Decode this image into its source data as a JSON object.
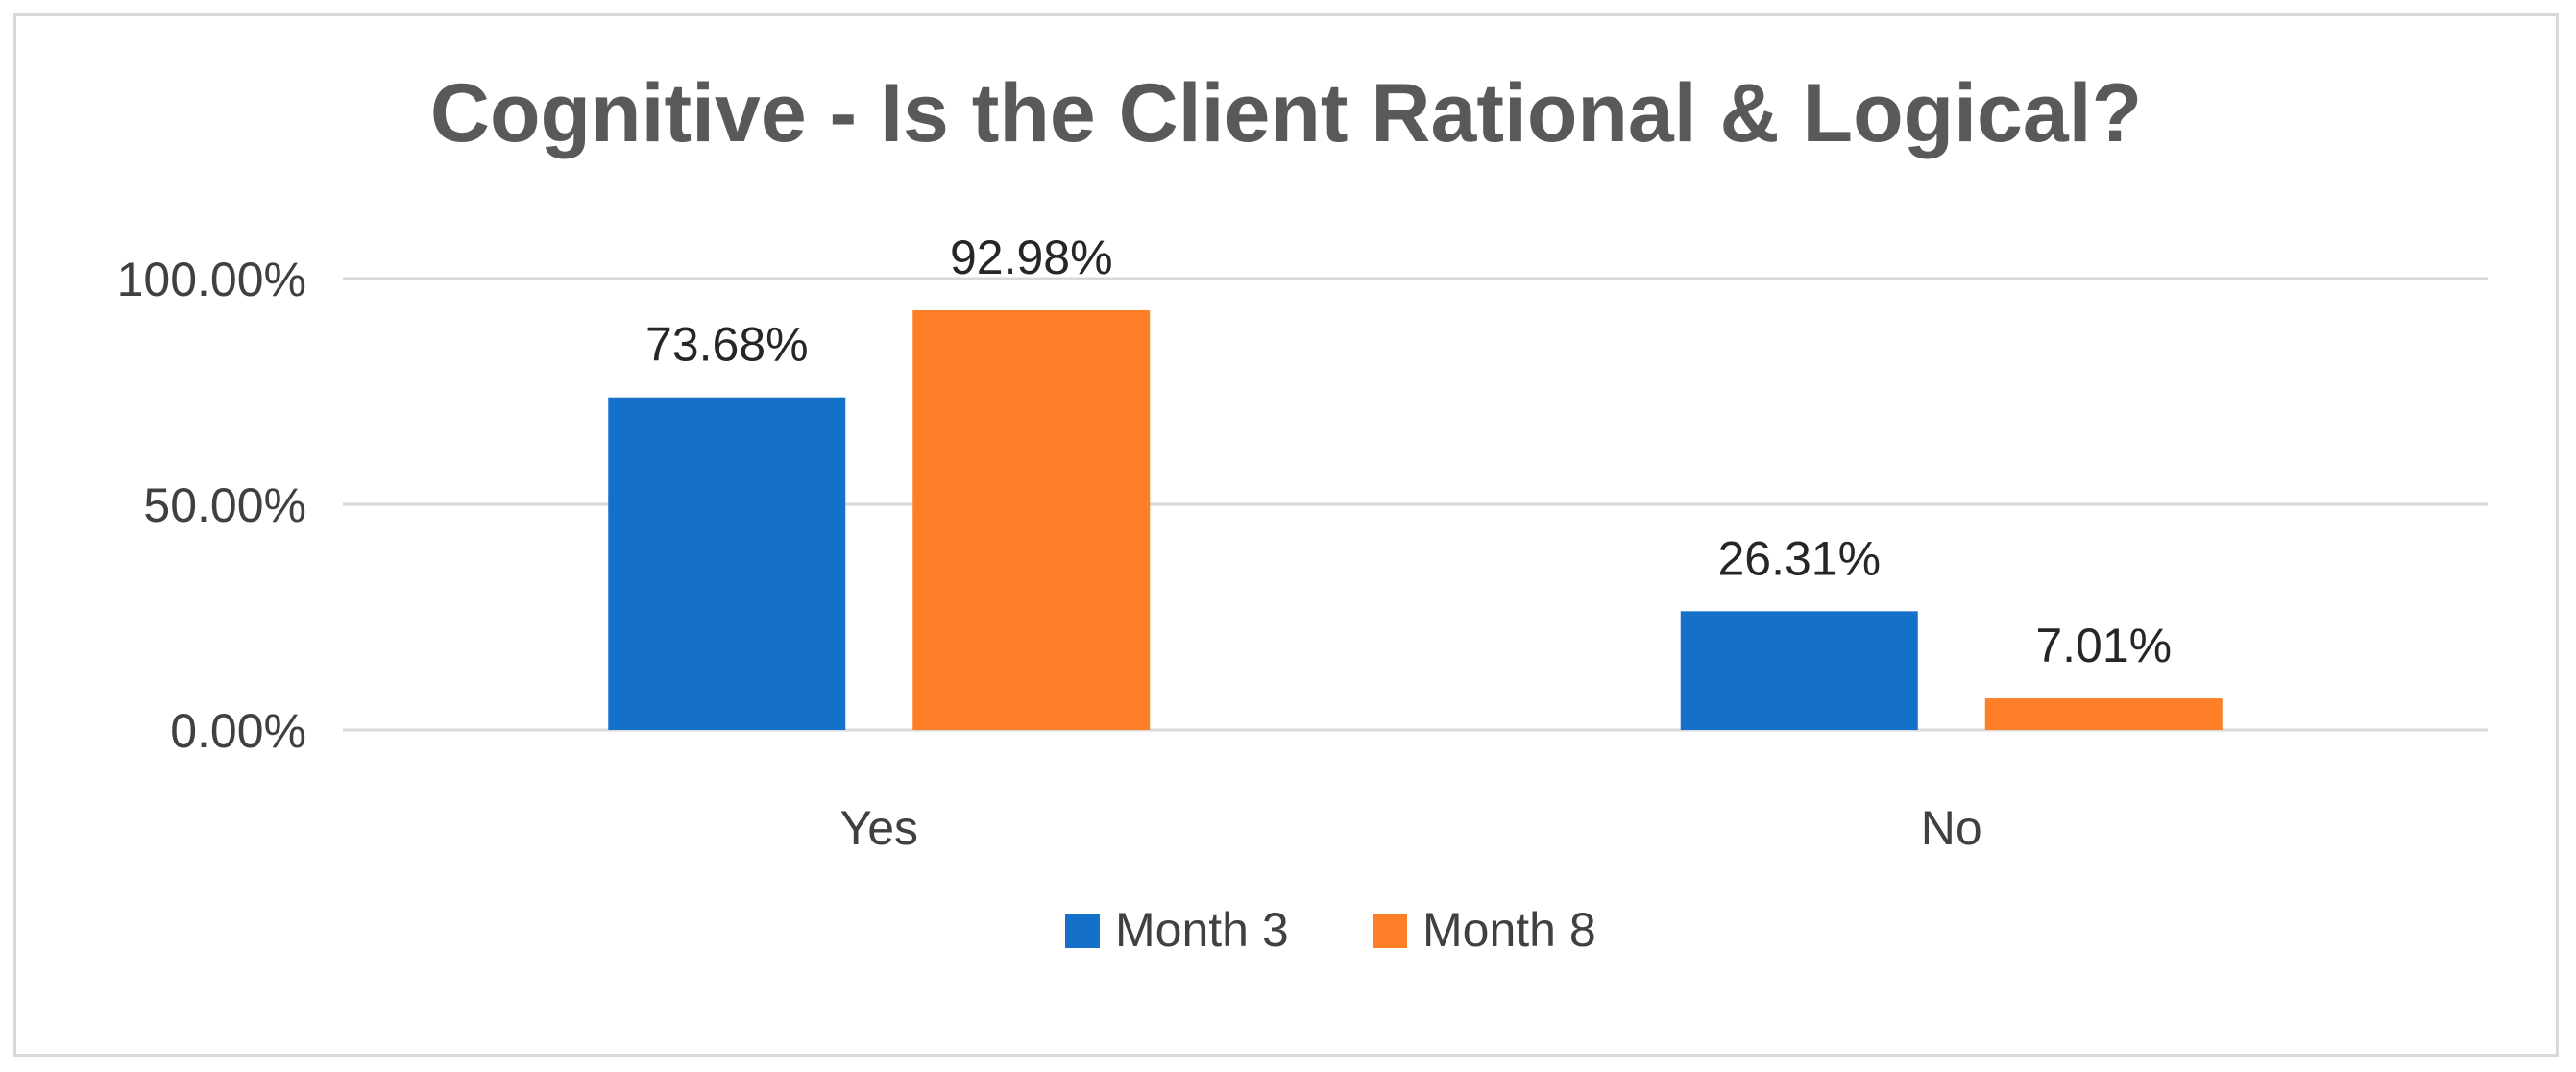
{
  "chart_data": {
    "type": "bar",
    "title": "Cognitive - Is the Client Rational & Logical?",
    "categories": [
      "Yes",
      "No"
    ],
    "series": [
      {
        "name": "Month 3",
        "values": [
          73.68,
          26.31
        ],
        "color": "#1470c8",
        "labels": [
          "73.68%",
          "26.31%"
        ]
      },
      {
        "name": "Month 8",
        "values": [
          92.98,
          7.01
        ],
        "color": "#fd7f28",
        "labels": [
          "92.98%",
          "7.01%"
        ]
      }
    ],
    "ylim": [
      0,
      100
    ],
    "yticks": [
      0,
      50,
      100
    ],
    "ytick_labels": [
      "0.00%",
      "50.00%",
      "100.00%"
    ],
    "grid": true,
    "legend_position": "bottom"
  }
}
